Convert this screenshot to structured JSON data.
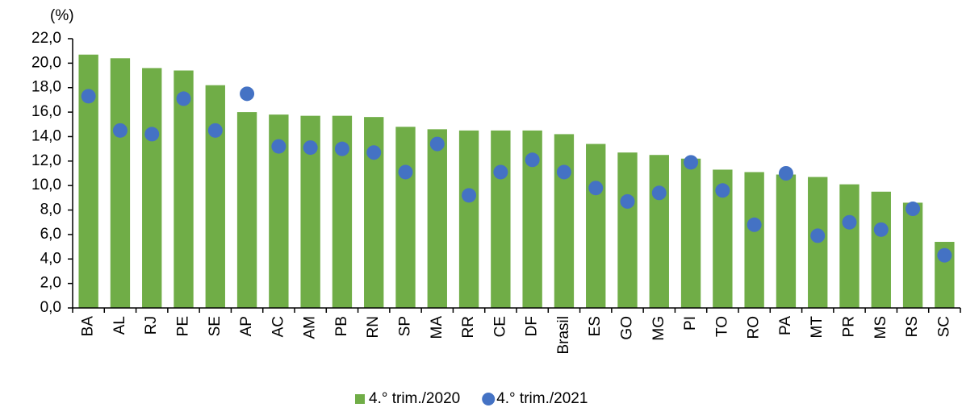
{
  "chart_data": {
    "type": "bar",
    "y_label": "(%)",
    "categories": [
      "BA",
      "AL",
      "RJ",
      "PE",
      "SE",
      "AP",
      "AC",
      "AM",
      "PB",
      "RN",
      "SP",
      "MA",
      "RR",
      "CE",
      "DF",
      "Brasil",
      "ES",
      "GO",
      "MG",
      "PI",
      "TO",
      "RO",
      "PA",
      "MT",
      "PR",
      "MS",
      "RS",
      "SC"
    ],
    "series": [
      {
        "name": "4.° trim./2020",
        "type": "bar",
        "color": "#70ad47",
        "values": [
          20.7,
          20.4,
          19.6,
          19.4,
          18.2,
          16.0,
          15.8,
          15.7,
          15.7,
          15.6,
          14.8,
          14.6,
          14.5,
          14.5,
          14.5,
          14.2,
          13.4,
          12.7,
          12.5,
          12.2,
          11.3,
          11.1,
          10.9,
          10.7,
          10.1,
          9.5,
          8.6,
          5.4
        ]
      },
      {
        "name": "4.° trim./2021",
        "type": "scatter",
        "color": "#4472c4",
        "values": [
          17.3,
          14.5,
          14.2,
          17.1,
          14.5,
          17.5,
          13.2,
          13.1,
          13.0,
          12.7,
          11.1,
          13.4,
          9.2,
          11.1,
          12.1,
          11.1,
          9.8,
          8.7,
          9.4,
          11.9,
          9.6,
          6.8,
          11.0,
          5.9,
          7.0,
          6.4,
          8.1,
          4.3
        ]
      }
    ],
    "ylim": [
      0,
      22
    ],
    "yticks": [
      {
        "value": 0,
        "label": "0,0"
      },
      {
        "value": 2,
        "label": "2,0"
      },
      {
        "value": 4,
        "label": "4,0"
      },
      {
        "value": 6,
        "label": "6,0"
      },
      {
        "value": 8,
        "label": "8,0"
      },
      {
        "value": 10,
        "label": "10,0"
      },
      {
        "value": 12,
        "label": "12,0"
      },
      {
        "value": 14,
        "label": "14,0"
      },
      {
        "value": 16,
        "label": "16,0"
      },
      {
        "value": 18,
        "label": "18,0"
      },
      {
        "value": 20,
        "label": "20,0"
      },
      {
        "value": 22,
        "label": "22,0"
      }
    ],
    "grid": false,
    "legend": "bottom"
  }
}
